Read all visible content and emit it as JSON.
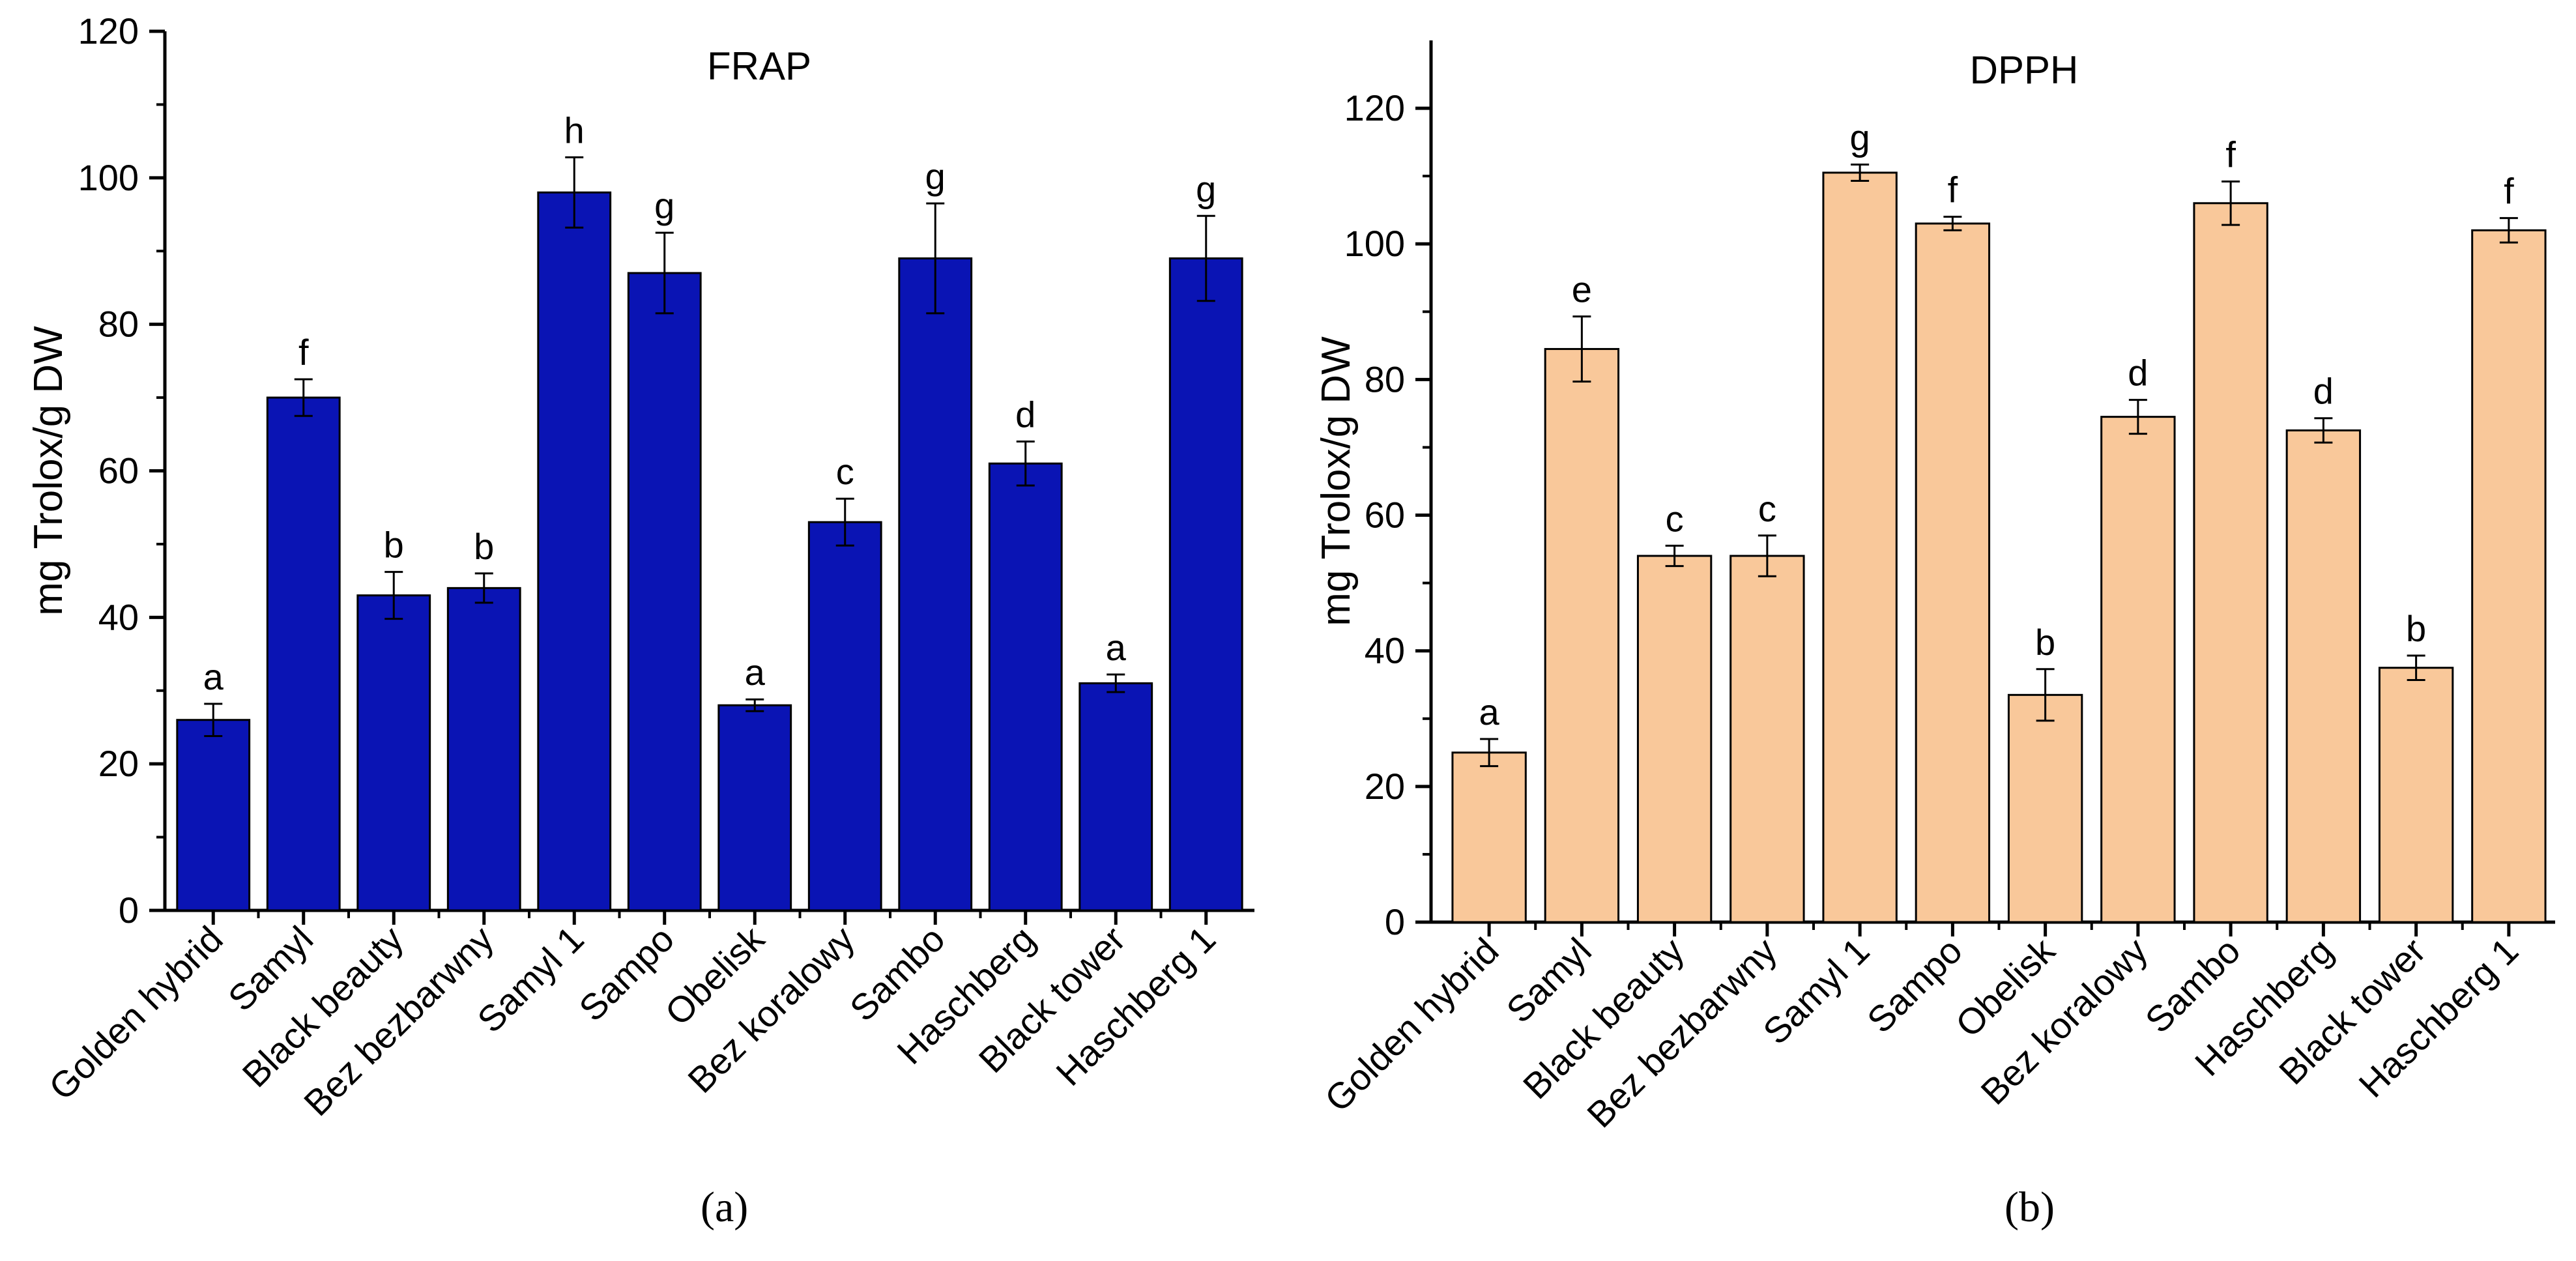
{
  "chart_data": [
    {
      "type": "bar",
      "title": "FRAP",
      "caption": "(a)",
      "xlabel": "",
      "ylabel": "mg Trolox/g DW",
      "ylim": [
        0,
        120
      ],
      "yticks": [
        0,
        20,
        40,
        60,
        80,
        100,
        120
      ],
      "bar_color": "#0a14b4",
      "categories": [
        "Golden hybrid",
        "Samyl",
        "Black beauty",
        "Bez bezbarwny",
        "Samyl 1",
        "Sampo",
        "Obelisk",
        "Bez koralowy",
        "Sambo",
        "Haschberg",
        "Black tower",
        "Haschberg 1"
      ],
      "values": [
        26,
        70,
        43,
        44,
        98,
        87,
        28,
        53,
        89,
        61,
        31,
        89
      ],
      "errors": [
        2.2,
        2.5,
        3.2,
        2.0,
        4.8,
        5.5,
        0.8,
        3.2,
        7.5,
        3.0,
        1.2,
        5.8
      ],
      "significance_letters": [
        "a",
        "f",
        "b",
        "b",
        "h",
        "g",
        "a",
        "c",
        "g",
        "d",
        "a",
        "g"
      ]
    },
    {
      "type": "bar",
      "title": "DPPH",
      "caption": "(b)",
      "xlabel": "",
      "ylabel": "mg Trolox/g DW",
      "ylim": [
        0,
        130
      ],
      "yticks": [
        0,
        20,
        40,
        60,
        80,
        100,
        120
      ],
      "bar_color": "#f9c89a",
      "categories": [
        "Golden hybrid",
        "Samyl",
        "Black beauty",
        "Bez bezbarwny",
        "Samyl 1",
        "Sampo",
        "Obelisk",
        "Bez koralowy",
        "Sambo",
        "Haschberg",
        "Black tower",
        "Haschberg 1"
      ],
      "values": [
        25,
        84.5,
        54,
        54,
        110.5,
        103,
        33.5,
        74.5,
        106,
        72.5,
        37.5,
        102
      ],
      "errors": [
        2.0,
        4.8,
        1.5,
        3.0,
        1.2,
        1.0,
        3.8,
        2.5,
        3.2,
        1.8,
        1.8,
        1.8
      ],
      "significance_letters": [
        "a",
        "e",
        "c",
        "c",
        "g",
        "f",
        "b",
        "d",
        "f",
        "d",
        "b",
        "f"
      ]
    }
  ]
}
